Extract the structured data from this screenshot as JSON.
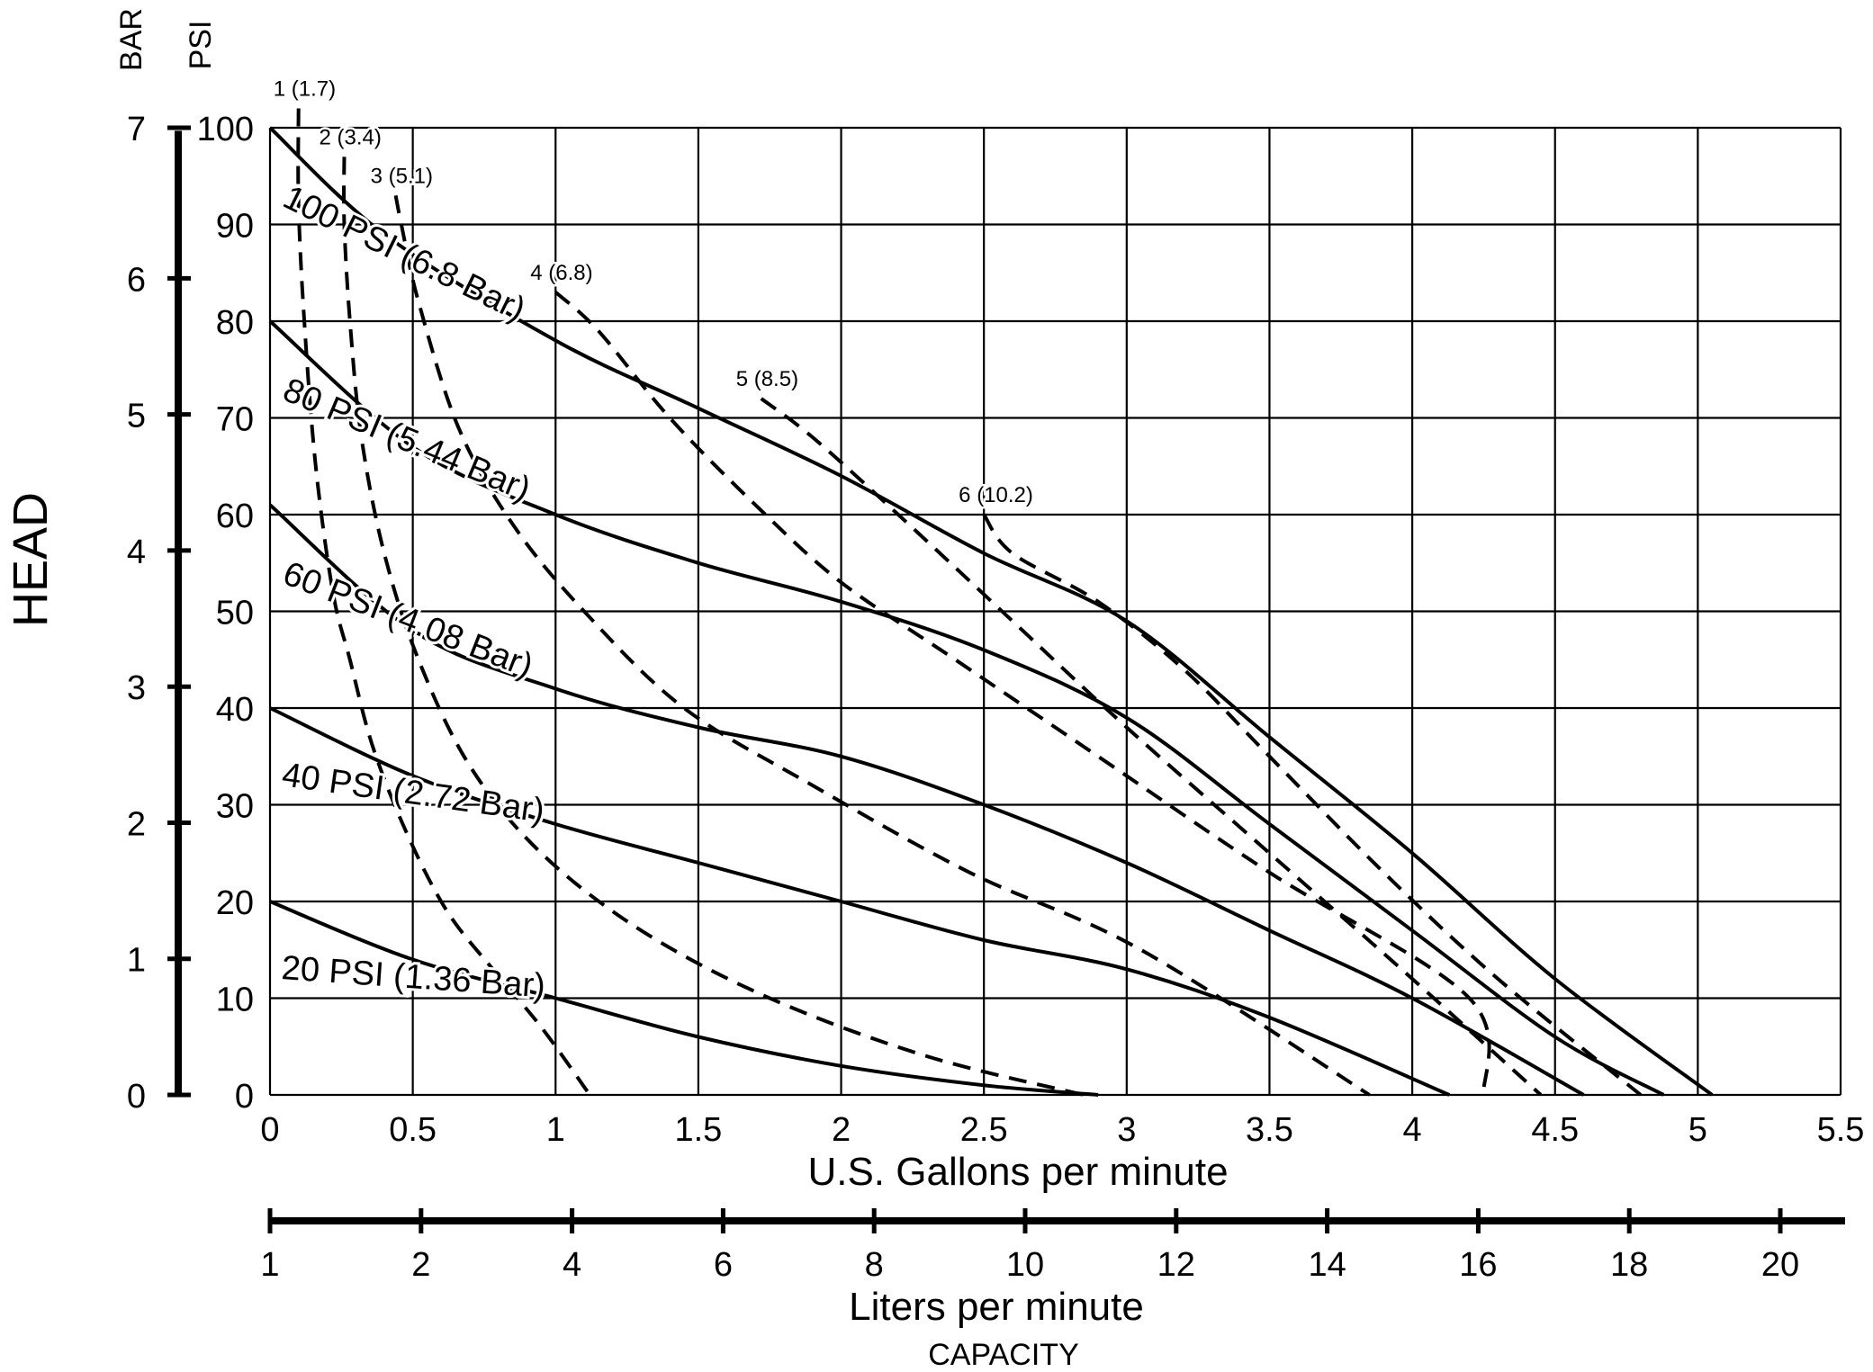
{
  "chart_data": {
    "type": "line",
    "title": "",
    "xlabel": "U.S. Gallons per minute",
    "x2label": "Liters per minute",
    "capacity_label": "CAPACITY",
    "ylabel": "HEAD",
    "y_units": {
      "psi": "PSI",
      "bar": "BAR"
    },
    "xlim": [
      0,
      5.5
    ],
    "ylim": [
      0,
      100
    ],
    "grid": true,
    "x_ticks": [
      "0",
      "0.5",
      "1",
      "1.5",
      "2",
      "2.5",
      "3",
      "3.5",
      "4",
      "4.5",
      "5",
      "5.5"
    ],
    "psi_ticks": [
      "0",
      "10",
      "20",
      "30",
      "40",
      "50",
      "60",
      "70",
      "80",
      "90",
      "100"
    ],
    "bar_ticks": [
      "0",
      "1",
      "2",
      "3",
      "4",
      "5",
      "6",
      "7"
    ],
    "lpm_ticks": [
      "1",
      "2",
      "4",
      "6",
      "8",
      "10",
      "12",
      "14",
      "16",
      "18",
      "20"
    ],
    "pressure_series": [
      {
        "name": "100 PSI (6.8 Bar)",
        "x": [
          0,
          0.4,
          1.0,
          1.5,
          2.0,
          2.5,
          3.0,
          3.5,
          4.0,
          4.5,
          5.05
        ],
        "y": [
          100,
          89,
          78,
          71,
          64,
          56,
          49,
          37,
          25,
          12,
          0
        ]
      },
      {
        "name": "80 PSI (5.44 Bar)",
        "x": [
          0,
          0.5,
          1.0,
          1.5,
          2.0,
          2.5,
          3.0,
          3.5,
          4.0,
          4.5,
          4.88
        ],
        "y": [
          80,
          67,
          60,
          55,
          51,
          46,
          39,
          28,
          17,
          6,
          0
        ]
      },
      {
        "name": "60 PSI (4.08 Bar)",
        "x": [
          0,
          0.5,
          1.0,
          1.5,
          2.0,
          2.5,
          3.0,
          3.5,
          4.0,
          4.6
        ],
        "y": [
          61,
          48,
          42,
          38,
          35,
          30,
          24,
          17,
          10,
          0
        ]
      },
      {
        "name": "40 PSI (2.72 Bar)",
        "x": [
          0,
          0.5,
          1.0,
          1.5,
          2.0,
          2.5,
          3.0,
          3.5,
          4.13
        ],
        "y": [
          40,
          33,
          28,
          24,
          20,
          16,
          13,
          8,
          0
        ]
      },
      {
        "name": "20 PSI (1.36 Bar)",
        "x": [
          0,
          0.5,
          1.0,
          1.5,
          2.0,
          2.5,
          2.9
        ],
        "y": [
          20,
          14,
          10,
          6,
          3,
          1,
          0
        ]
      }
    ],
    "air_series": [
      {
        "name": "1 (1.7)",
        "x": [
          0.1,
          0.1,
          0.12,
          0.16,
          0.22,
          0.28,
          0.36,
          0.48,
          0.62,
          0.78,
          0.95,
          1.12
        ],
        "y": [
          102,
          92,
          80,
          65,
          52,
          45,
          36,
          27,
          19,
          13,
          7,
          0
        ]
      },
      {
        "name": "2 (3.4)",
        "x": [
          0.26,
          0.26,
          0.28,
          0.32,
          0.4,
          0.52,
          0.7,
          0.95,
          1.3,
          1.75,
          2.3,
          2.85
        ],
        "y": [
          97,
          90,
          80,
          68,
          56,
          45,
          34,
          25,
          17,
          10,
          4,
          0
        ]
      },
      {
        "name": "3 (5.1)",
        "x": [
          0.44,
          0.46,
          0.52,
          0.66,
          0.85,
          1.1,
          1.45,
          1.9,
          2.45,
          3.05,
          3.85
        ],
        "y": [
          93,
          90,
          82,
          69,
          59,
          50,
          40,
          32,
          23,
          15,
          0
        ]
      },
      {
        "name": "4 (6.8)",
        "x": [
          1.0,
          1.15,
          1.4,
          1.7,
          2.0,
          2.4,
          2.9,
          3.5,
          4.2,
          4.25
        ],
        "y": [
          83,
          79,
          70,
          61,
          53,
          45,
          35,
          23,
          10,
          0
        ]
      },
      {
        "name": "5 (8.5)",
        "x": [
          1.72,
          1.9,
          2.2,
          2.6,
          3.0,
          3.5,
          4.0,
          4.45
        ],
        "y": [
          72,
          68,
          60,
          49,
          38,
          25,
          12,
          0
        ]
      },
      {
        "name": "6 (10.2)",
        "x": [
          2.5,
          2.6,
          2.9,
          3.2,
          3.5,
          3.9,
          4.3,
          4.8
        ],
        "y": [
          60,
          56,
          51,
          44,
          35,
          23,
          12,
          0
        ]
      }
    ]
  }
}
